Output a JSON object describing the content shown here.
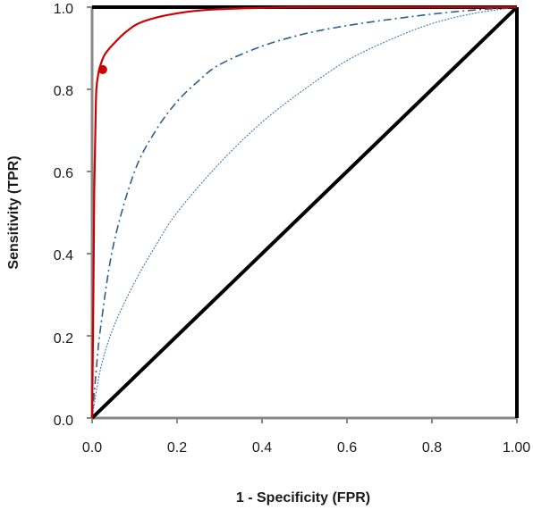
{
  "chart_data": {
    "type": "line",
    "title": "",
    "xlabel": "1 - Specificity (FPR)",
    "ylabel": "Sensitivity (TPR)",
    "xlim": [
      0.0,
      1.0
    ],
    "ylim": [
      0.0,
      1.0
    ],
    "x_ticks": [
      "0.0",
      "0.2",
      "0.4",
      "0.6",
      "0.8",
      "1.00"
    ],
    "y_ticks": [
      "0.0",
      "0.2",
      "0.4",
      "0.6",
      "0.8",
      "1.0"
    ],
    "grid": false,
    "legend": "none",
    "series": [
      {
        "style": "solid-thick",
        "color": "#000000",
        "x": [
          0.0,
          1.0
        ],
        "y": [
          0.0,
          1.0
        ]
      },
      {
        "style": "dotted-thin",
        "color": "#2e6fa8",
        "x": [
          0.0,
          0.02,
          0.05,
          0.1,
          0.15,
          0.2,
          0.3,
          0.4,
          0.5,
          0.6,
          0.7,
          0.8,
          0.9,
          1.0
        ],
        "y": [
          0.0,
          0.12,
          0.22,
          0.33,
          0.42,
          0.5,
          0.62,
          0.72,
          0.8,
          0.87,
          0.92,
          0.96,
          0.985,
          1.0
        ]
      },
      {
        "style": "dash-dot",
        "color": "#2e5f8f",
        "x": [
          0.0,
          0.01,
          0.02,
          0.05,
          0.1,
          0.15,
          0.2,
          0.25,
          0.3,
          0.4,
          0.5,
          0.6,
          0.7,
          0.8,
          0.9,
          1.0
        ],
        "y": [
          0.0,
          0.12,
          0.22,
          0.42,
          0.6,
          0.7,
          0.77,
          0.82,
          0.86,
          0.905,
          0.935,
          0.955,
          0.97,
          0.983,
          0.993,
          1.0
        ]
      },
      {
        "style": "solid",
        "color": "#cc0000",
        "x": [
          0.0,
          0.003,
          0.005,
          0.008,
          0.01,
          0.015,
          0.02,
          0.03,
          0.05,
          0.08,
          0.12,
          0.2,
          0.3,
          0.5,
          0.8,
          1.0
        ],
        "y": [
          0.0,
          0.3,
          0.55,
          0.72,
          0.8,
          0.84,
          0.86,
          0.885,
          0.91,
          0.94,
          0.965,
          0.985,
          0.995,
          1.0,
          1.0,
          1.0
        ]
      }
    ],
    "markers": [
      {
        "x": 0.025,
        "y": 0.848,
        "color": "#cc0000"
      }
    ]
  }
}
